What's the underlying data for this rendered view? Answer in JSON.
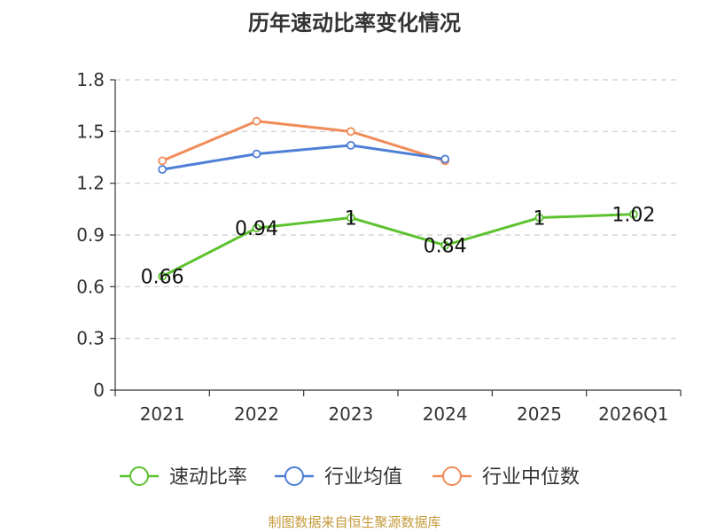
{
  "chart_data": {
    "type": "line",
    "title": "历年速动比率变化情况",
    "categories": [
      "2021",
      "2022",
      "2023",
      "2024",
      "2025",
      "2026Q1"
    ],
    "y_ticks": [
      "0",
      "0.3",
      "0.6",
      "0.9",
      "1.2",
      "1.5",
      "1.8"
    ],
    "ylim": [
      0,
      1.8
    ],
    "grid": true,
    "legend_position": "bottom",
    "series": [
      {
        "name": "速动比率",
        "color": "#5dc22f",
        "values": [
          0.66,
          0.94,
          1,
          0.84,
          1,
          1.02
        ],
        "labels": [
          "0.66",
          "0.94",
          "1",
          "0.84",
          "1",
          "1.02"
        ]
      },
      {
        "name": "行业均值",
        "color": "#4e7fd6",
        "values": [
          1.28,
          1.37,
          1.42,
          1.34,
          null,
          null
        ]
      },
      {
        "name": "行业中位数",
        "color": "#f08c5a",
        "values": [
          1.33,
          1.56,
          1.5,
          1.33,
          null,
          null
        ]
      }
    ],
    "source": "制图数据来自恒生聚源数据库"
  }
}
